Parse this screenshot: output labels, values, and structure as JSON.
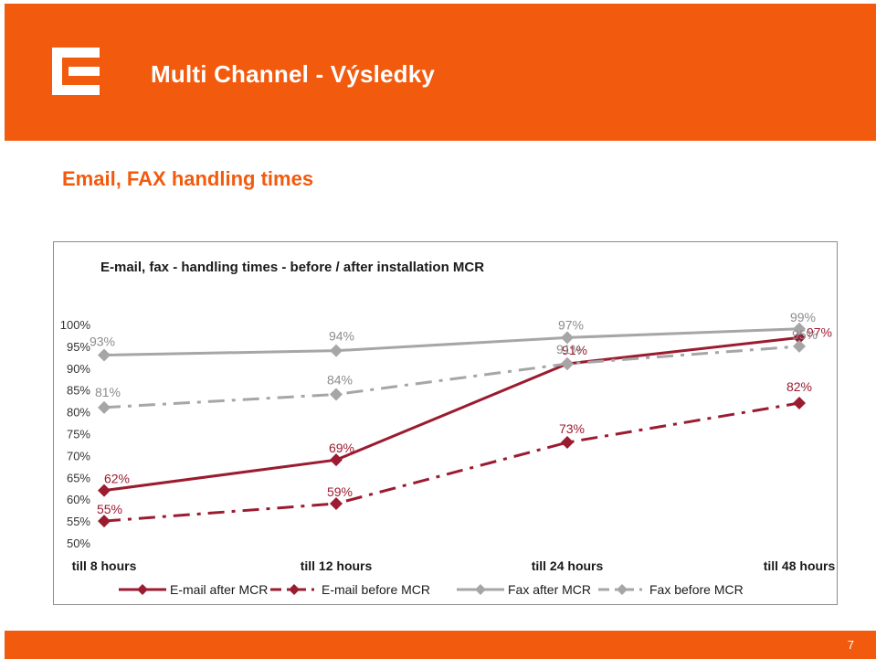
{
  "header": {
    "title": "Multi Channel - Výsledky",
    "brand_color": "#f25a0e"
  },
  "section": {
    "title": "Email, FAX handling times"
  },
  "footer": {
    "page_number": "7"
  },
  "chart_data": {
    "type": "line",
    "title": "E-mail, fax - handling times  - before / after installation MCR",
    "categories": [
      "till 8 hours",
      "till 12 hours",
      "till 24 hours",
      "till 48 hours"
    ],
    "ylim": [
      50,
      100
    ],
    "yticks": [
      50,
      55,
      60,
      65,
      70,
      75,
      80,
      85,
      90,
      95,
      100
    ],
    "ytick_labels": [
      "50%",
      "55%",
      "60%",
      "65%",
      "70%",
      "75%",
      "80%",
      "85%",
      "90%",
      "95%",
      "100%"
    ],
    "grid": false,
    "legend_position": "bottom",
    "series": [
      {
        "name": "E-mail after MCR",
        "values": [
          62,
          69,
          91,
          97
        ],
        "labels": [
          "62%",
          "69%",
          "91%",
          "97%"
        ],
        "color": "#9b1b30",
        "dashed": false
      },
      {
        "name": "E-mail before MCR",
        "values": [
          55,
          59,
          73,
          82
        ],
        "labels": [
          "55%",
          "59%",
          "73%",
          "82%"
        ],
        "color": "#9b1b30",
        "dashed": true
      },
      {
        "name": "Fax after MCR",
        "values": [
          93,
          94,
          97,
          99
        ],
        "labels": [
          "93%",
          "94%",
          "97%",
          "99%"
        ],
        "color": "#a6a6a6",
        "dashed": false
      },
      {
        "name": "Fax before MCR",
        "values": [
          81,
          84,
          91,
          95
        ],
        "labels": [
          "81%",
          "84%",
          "91%",
          "95%"
        ],
        "color": "#a6a6a6",
        "dashed": true
      }
    ]
  }
}
